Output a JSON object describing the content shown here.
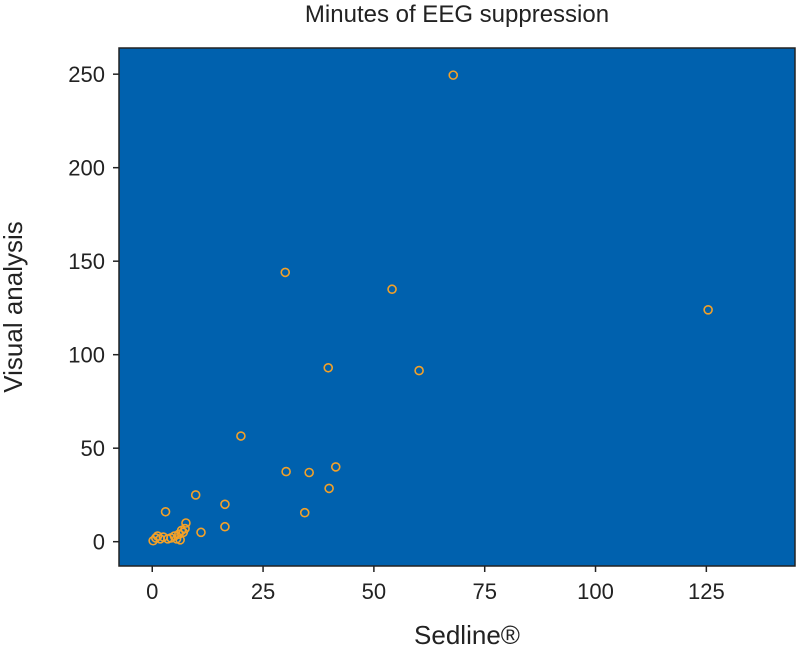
{
  "colors": {
    "plot_background": "#0061ae",
    "marker": "#f3a128",
    "axis": "#222222"
  },
  "chart_data": {
    "type": "scatter",
    "title": "Minutes of EEG suppression",
    "xlabel": "Sedline®",
    "ylabel": "Visual analysis",
    "xlim": [
      -7.5,
      145
    ],
    "ylim": [
      -13,
      264
    ],
    "xticks": [
      0,
      25,
      50,
      75,
      100,
      125
    ],
    "yticks": [
      0,
      50,
      100,
      150,
      200,
      250
    ],
    "marker": "hollow-circle",
    "grid": false,
    "points": [
      {
        "x": 0.2,
        "y": 0.5
      },
      {
        "x": 0.8,
        "y": 2
      },
      {
        "x": 1.2,
        "y": 3
      },
      {
        "x": 1.8,
        "y": 1.5
      },
      {
        "x": 2.5,
        "y": 2.5
      },
      {
        "x": 3.0,
        "y": 16
      },
      {
        "x": 3.5,
        "y": 1.5
      },
      {
        "x": 4.2,
        "y": 2
      },
      {
        "x": 5.0,
        "y": 3
      },
      {
        "x": 5.5,
        "y": 1.5
      },
      {
        "x": 6.0,
        "y": 4
      },
      {
        "x": 6.3,
        "y": 1
      },
      {
        "x": 6.6,
        "y": 6
      },
      {
        "x": 7.0,
        "y": 5
      },
      {
        "x": 7.4,
        "y": 7
      },
      {
        "x": 7.6,
        "y": 10
      },
      {
        "x": 9.8,
        "y": 25
      },
      {
        "x": 11.0,
        "y": 5
      },
      {
        "x": 16.4,
        "y": 8
      },
      {
        "x": 16.4,
        "y": 20
      },
      {
        "x": 20.0,
        "y": 56.5
      },
      {
        "x": 30.0,
        "y": 144
      },
      {
        "x": 30.2,
        "y": 37.5
      },
      {
        "x": 34.4,
        "y": 15.5
      },
      {
        "x": 35.4,
        "y": 37
      },
      {
        "x": 39.7,
        "y": 93
      },
      {
        "x": 39.9,
        "y": 28.5
      },
      {
        "x": 41.4,
        "y": 40
      },
      {
        "x": 54.1,
        "y": 135
      },
      {
        "x": 60.2,
        "y": 91.5
      },
      {
        "x": 67.9,
        "y": 249.5
      },
      {
        "x": 125.4,
        "y": 124
      }
    ]
  }
}
